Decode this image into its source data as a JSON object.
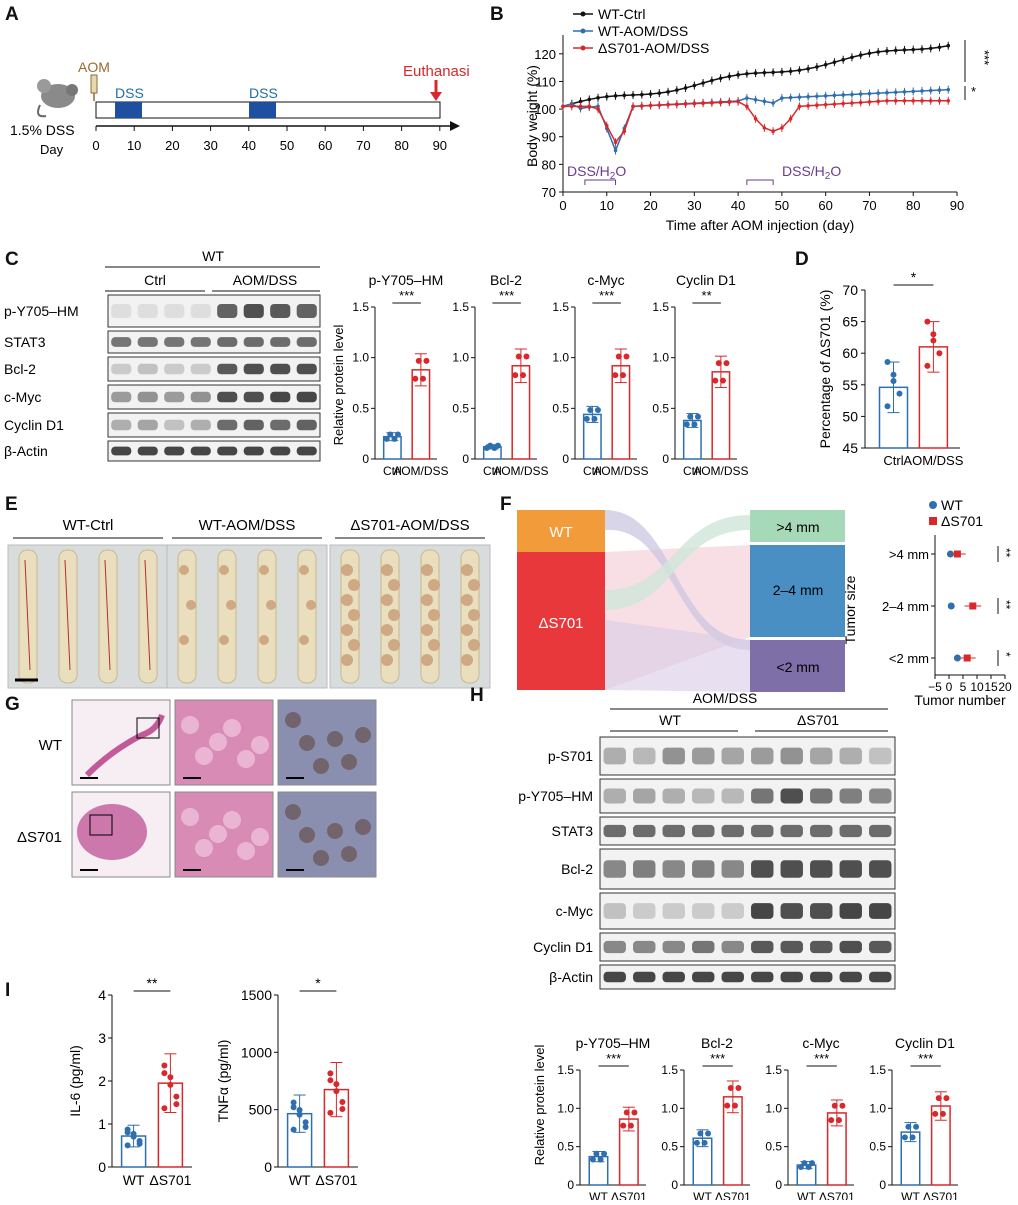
{
  "panels": {
    "A": {
      "label": "A",
      "aom": "AOM",
      "dss1": "DSS",
      "dss2": "DSS",
      "euth": "Euthanasia",
      "dss_conc": "1.5% DSS",
      "day": "Day",
      "ticks": [
        "0",
        "10",
        "20",
        "30",
        "40",
        "50",
        "60",
        "70",
        "80",
        "90"
      ]
    },
    "B": {
      "label": "B",
      "legend": [
        "WT-Ctrl",
        "WT-AOM/DSS",
        "ΔS701-AOM/DSS"
      ],
      "colors": [
        "#111111",
        "#2e6fb0",
        "#d9282b"
      ],
      "ylabel": "Body weight (%)",
      "xlabel": "Time after AOM injection (day)",
      "yticks": [
        "70",
        "80",
        "90",
        "100",
        "110",
        "120"
      ],
      "xticks": [
        "0",
        "10",
        "20",
        "30",
        "40",
        "50",
        "60",
        "70",
        "80",
        "90"
      ],
      "dss_label": "DSS/H",
      "dss_sub": "2",
      "dss_o": "O",
      "sig1": "***",
      "sig2": "*"
    },
    "C": {
      "label": "C",
      "wt": "WT",
      "ctrl": "Ctrl",
      "aomdss": "AOM/DSS",
      "blots": [
        "p-Y705–HM",
        "STAT3",
        "Bcl-2",
        "c-Myc",
        "Cyclin D1",
        "β-Actin"
      ],
      "ylabel": "Relative protein level",
      "charts": [
        {
          "title": "p-Y705–HM",
          "sig": "***",
          "values": [
            0.22,
            0.88
          ]
        },
        {
          "title": "Bcl-2",
          "sig": "***",
          "values": [
            0.12,
            0.92
          ]
        },
        {
          "title": "c-Myc",
          "sig": "***",
          "values": [
            0.44,
            0.92
          ]
        },
        {
          "title": "Cyclin D1",
          "sig": "**",
          "values": [
            0.38,
            0.86
          ]
        }
      ],
      "yticks": [
        "0",
        "0.5",
        "1.0",
        "1.5"
      ],
      "xcats": [
        "Ctrl",
        "AOM/DSS"
      ]
    },
    "D": {
      "label": "D",
      "ylabel": "Percentage of ΔS701 (%)",
      "yticks": [
        "45",
        "50",
        "55",
        "60",
        "65",
        "70"
      ],
      "xcats": [
        "Ctrl",
        "AOM/DSS"
      ],
      "values": [
        54.6,
        61.0
      ],
      "sig": "*"
    },
    "E": {
      "label": "E",
      "groups": [
        "WT-Ctrl",
        "WT-AOM/DSS",
        "ΔS701-AOM/DSS"
      ]
    },
    "F": {
      "label": "F",
      "left": [
        "WT",
        "ΔS701"
      ],
      "right": [
        ">4 mm",
        "2–4 mm",
        "<2 mm"
      ],
      "legend": [
        "WT",
        "ΔS701"
      ],
      "ylabel": "Tumor size",
      "xlabel": "Tumor number",
      "xticks": [
        "−5",
        "0",
        "5",
        "10",
        "15",
        "20"
      ],
      "cats": [
        ">4 mm",
        "2–4 mm",
        "<2 mm"
      ],
      "sigs": [
        "**",
        "**",
        "*"
      ],
      "wt_vals": [
        0.5,
        0.8,
        3.0
      ],
      "ko_vals": [
        3.0,
        8.5,
        6.5
      ]
    },
    "G": {
      "label": "G",
      "rows": [
        "WT",
        "ΔS701"
      ]
    },
    "H": {
      "label": "H",
      "title": "AOM/DSS",
      "wt": "WT",
      "ko": "ΔS701",
      "blots": [
        "p-S701",
        "p-Y705–HM",
        "STAT3",
        "Bcl-2",
        "c-Myc",
        "Cyclin D1",
        "β-Actin"
      ],
      "ylabel": "Relative protein level",
      "charts": [
        {
          "title": "p-Y705–HM",
          "sig": "***",
          "values": [
            0.37,
            0.86
          ]
        },
        {
          "title": "Bcl-2",
          "sig": "***",
          "values": [
            0.61,
            1.15
          ]
        },
        {
          "title": "c-Myc",
          "sig": "***",
          "values": [
            0.26,
            0.94
          ]
        },
        {
          "title": "Cyclin D1",
          "sig": "***",
          "values": [
            0.69,
            1.03
          ]
        }
      ],
      "yticks": [
        "0",
        "0.5",
        "1.0",
        "1.5"
      ],
      "xcats": [
        "WT",
        "ΔS701"
      ]
    },
    "I": {
      "label": "I",
      "charts": [
        {
          "ylabel": "IL-6 (pg/ml)",
          "sig": "**",
          "values": [
            0.72,
            1.95
          ],
          "yticks": [
            "0",
            "1",
            "2",
            "3",
            "4"
          ],
          "ymax": 4
        },
        {
          "ylabel": "TNFα (pg/ml)",
          "sig": "*",
          "values": [
            465,
            675
          ],
          "yticks": [
            "0",
            "500",
            "1000",
            "1500"
          ],
          "ymax": 1500
        }
      ],
      "xcats": [
        "WT",
        "ΔS701"
      ]
    }
  }
}
